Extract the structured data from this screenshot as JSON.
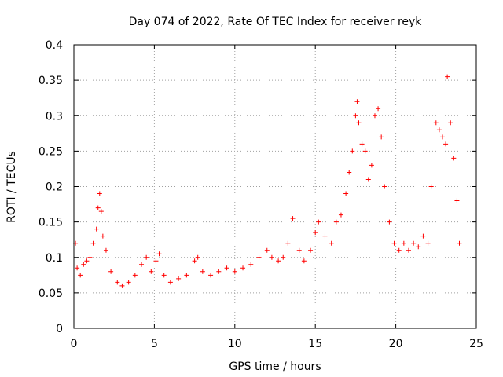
{
  "chart_data": {
    "type": "scatter",
    "title": "Day 074 of 2022, Rate Of TEC Index for receiver reyk",
    "xlabel": "GPS time / hours",
    "ylabel": "ROTI / TECUs",
    "xlim": [
      0,
      25
    ],
    "ylim": [
      0,
      0.4
    ],
    "xticks": [
      "0",
      "5",
      "10",
      "15",
      "20",
      "25"
    ],
    "yticks": [
      "0",
      "0.05",
      "0.1",
      "0.15",
      "0.2",
      "0.25",
      "0.3",
      "0.35",
      "0.4"
    ],
    "grid": true,
    "marker": "+",
    "color": "#ff0000",
    "series": [
      {
        "points": [
          [
            0.1,
            0.12
          ],
          [
            0.2,
            0.085
          ],
          [
            0.4,
            0.075
          ],
          [
            0.6,
            0.09
          ],
          [
            0.8,
            0.095
          ],
          [
            1.0,
            0.1
          ],
          [
            1.2,
            0.12
          ],
          [
            1.4,
            0.14
          ],
          [
            1.5,
            0.17
          ],
          [
            1.6,
            0.19
          ],
          [
            1.7,
            0.165
          ],
          [
            1.8,
            0.13
          ],
          [
            2.0,
            0.11
          ],
          [
            2.3,
            0.08
          ],
          [
            2.7,
            0.065
          ],
          [
            3.0,
            0.06
          ],
          [
            3.4,
            0.065
          ],
          [
            3.8,
            0.075
          ],
          [
            4.2,
            0.09
          ],
          [
            4.5,
            0.1
          ],
          [
            4.8,
            0.08
          ],
          [
            5.1,
            0.095
          ],
          [
            5.3,
            0.105
          ],
          [
            5.6,
            0.075
          ],
          [
            6.0,
            0.065
          ],
          [
            6.5,
            0.07
          ],
          [
            7.0,
            0.075
          ],
          [
            7.5,
            0.095
          ],
          [
            7.7,
            0.1
          ],
          [
            8.0,
            0.08
          ],
          [
            8.5,
            0.075
          ],
          [
            9.0,
            0.08
          ],
          [
            9.5,
            0.085
          ],
          [
            10.0,
            0.08
          ],
          [
            10.5,
            0.085
          ],
          [
            11.0,
            0.09
          ],
          [
            11.5,
            0.1
          ],
          [
            12.0,
            0.11
          ],
          [
            12.3,
            0.1
          ],
          [
            12.7,
            0.095
          ],
          [
            13.0,
            0.1
          ],
          [
            13.3,
            0.12
          ],
          [
            13.6,
            0.155
          ],
          [
            14.0,
            0.11
          ],
          [
            14.3,
            0.095
          ],
          [
            14.7,
            0.11
          ],
          [
            15.0,
            0.135
          ],
          [
            15.2,
            0.15
          ],
          [
            15.6,
            0.13
          ],
          [
            16.0,
            0.12
          ],
          [
            16.3,
            0.15
          ],
          [
            16.6,
            0.16
          ],
          [
            16.9,
            0.19
          ],
          [
            17.1,
            0.22
          ],
          [
            17.3,
            0.25
          ],
          [
            17.5,
            0.3
          ],
          [
            17.6,
            0.32
          ],
          [
            17.7,
            0.29
          ],
          [
            17.9,
            0.26
          ],
          [
            18.1,
            0.25
          ],
          [
            18.3,
            0.21
          ],
          [
            18.5,
            0.23
          ],
          [
            18.7,
            0.3
          ],
          [
            18.9,
            0.31
          ],
          [
            19.1,
            0.27
          ],
          [
            19.3,
            0.2
          ],
          [
            19.6,
            0.15
          ],
          [
            19.9,
            0.12
          ],
          [
            20.2,
            0.11
          ],
          [
            20.5,
            0.12
          ],
          [
            20.8,
            0.11
          ],
          [
            21.1,
            0.12
          ],
          [
            21.4,
            0.115
          ],
          [
            21.7,
            0.13
          ],
          [
            22.0,
            0.12
          ],
          [
            22.2,
            0.2
          ],
          [
            22.5,
            0.29
          ],
          [
            22.7,
            0.28
          ],
          [
            22.9,
            0.27
          ],
          [
            23.1,
            0.26
          ],
          [
            23.2,
            0.355
          ],
          [
            23.4,
            0.29
          ],
          [
            23.6,
            0.24
          ],
          [
            23.8,
            0.18
          ],
          [
            23.95,
            0.12
          ]
        ]
      }
    ]
  }
}
